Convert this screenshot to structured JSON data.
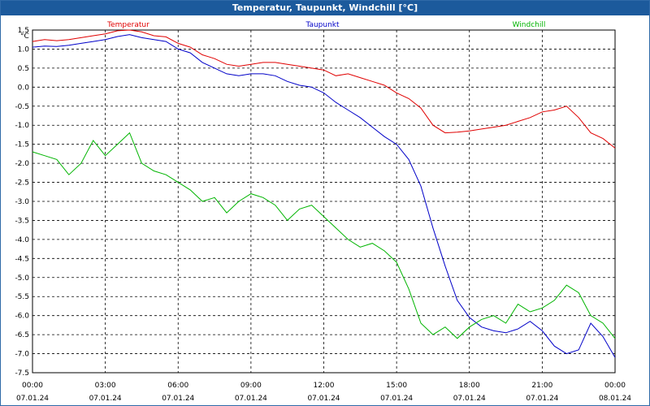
{
  "window": {
    "title": "Temperatur, Taupunkt, Windchill [°C]"
  },
  "chart_data": {
    "type": "line",
    "ylabel": "°C",
    "ylim": [
      -7.5,
      1.5
    ],
    "ystep": 0.5,
    "xlim": [
      "07.01.24 00:00",
      "08.01.24 00:00"
    ],
    "grid": true,
    "x_ticks": [
      {
        "time": "00:00",
        "date": "07.01.24"
      },
      {
        "time": "03:00",
        "date": "07.01.24"
      },
      {
        "time": "06:00",
        "date": "07.01.24"
      },
      {
        "time": "09:00",
        "date": "07.01.24"
      },
      {
        "time": "12:00",
        "date": "07.01.24"
      },
      {
        "time": "15:00",
        "date": "07.01.24"
      },
      {
        "time": "18:00",
        "date": "07.01.24"
      },
      {
        "time": "21:00",
        "date": "07.01.24"
      },
      {
        "time": "00:00",
        "date": "08.01.24"
      }
    ],
    "y_ticks": [
      "1.5",
      "1.0",
      "0.5",
      "0.0",
      "-0.5",
      "-1.0",
      "-1.5",
      "-2.0",
      "-2.5",
      "-3.0",
      "-3.5",
      "-4.0",
      "-4.5",
      "-5.0",
      "-5.5",
      "-6.0",
      "-6.5",
      "-7.0",
      "-7.5"
    ],
    "x_hours": [
      0,
      0.5,
      1,
      1.5,
      2,
      2.5,
      3,
      3.5,
      4,
      4.5,
      5,
      5.5,
      6,
      6.5,
      7,
      7.5,
      8,
      8.5,
      9,
      9.5,
      10,
      10.5,
      11,
      11.5,
      12,
      12.5,
      13,
      13.5,
      14,
      14.5,
      15,
      15.5,
      16,
      16.5,
      17,
      17.5,
      18,
      18.5,
      19,
      19.5,
      20,
      20.5,
      21,
      21.5,
      22,
      22.5,
      23,
      23.5,
      24
    ],
    "series": [
      {
        "name": "Temperatur",
        "color": "#e00000",
        "values": [
          1.2,
          1.25,
          1.22,
          1.25,
          1.3,
          1.35,
          1.4,
          1.48,
          1.5,
          1.45,
          1.35,
          1.32,
          1.15,
          1.05,
          0.85,
          0.75,
          0.6,
          0.55,
          0.6,
          0.65,
          0.65,
          0.6,
          0.55,
          0.5,
          0.45,
          0.3,
          0.35,
          0.25,
          0.15,
          0.05,
          -0.15,
          -0.3,
          -0.55,
          -1.0,
          -1.2,
          -1.18,
          -1.15,
          -1.1,
          -1.05,
          -1.0,
          -0.9,
          -0.8,
          -0.65,
          -0.6,
          -0.5,
          -0.8,
          -1.2,
          -1.35,
          -1.6
        ]
      },
      {
        "name": "Taupunkt",
        "color": "#0000c8",
        "values": [
          1.05,
          1.08,
          1.07,
          1.1,
          1.15,
          1.2,
          1.25,
          1.33,
          1.38,
          1.3,
          1.25,
          1.2,
          1.0,
          0.9,
          0.65,
          0.5,
          0.35,
          0.3,
          0.35,
          0.35,
          0.3,
          0.15,
          0.05,
          0.0,
          -0.15,
          -0.4,
          -0.6,
          -0.8,
          -1.05,
          -1.3,
          -1.5,
          -1.9,
          -2.6,
          -3.7,
          -4.7,
          -5.6,
          -6.05,
          -6.3,
          -6.4,
          -6.45,
          -6.35,
          -6.15,
          -6.4,
          -6.8,
          -7.0,
          -6.9,
          -6.2,
          -6.55,
          -7.1
        ]
      },
      {
        "name": "Windchill",
        "color": "#00b400",
        "values": [
          -1.7,
          -1.8,
          -1.9,
          -2.3,
          -2.0,
          -1.4,
          -1.8,
          -1.5,
          -1.2,
          -2.0,
          -2.2,
          -2.3,
          -2.5,
          -2.7,
          -3.0,
          -2.9,
          -3.3,
          -3.0,
          -2.8,
          -2.9,
          -3.1,
          -3.5,
          -3.2,
          -3.1,
          -3.4,
          -3.7,
          -4.0,
          -4.2,
          -4.1,
          -4.3,
          -4.6,
          -5.3,
          -6.2,
          -6.5,
          -6.3,
          -6.6,
          -6.3,
          -6.1,
          -6.0,
          -6.2,
          -5.7,
          -5.9,
          -5.8,
          -5.6,
          -5.2,
          -5.4,
          -6.0,
          -6.2,
          -6.6
        ]
      }
    ]
  }
}
